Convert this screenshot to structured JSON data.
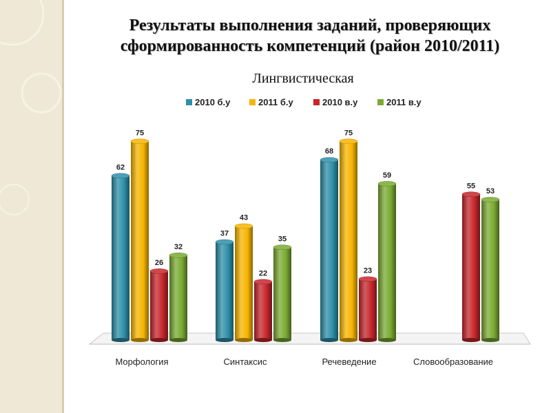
{
  "slide": {
    "title_line1": "Результаты выполнения заданий, проверяющих",
    "title_line2": "сформированность компетенций (район 2010/2011)"
  },
  "colors": {
    "blue": "#2e8fa8",
    "orange": "#f7b500",
    "red": "#c6262c",
    "green": "#7aaa32"
  },
  "chart_data": {
    "type": "bar",
    "title": "Лингвистическая",
    "categories": [
      "Морфология",
      "Синтаксис",
      "Речеведение",
      "Словообразование"
    ],
    "series": [
      {
        "name": "2010 б.у",
        "color": "#2e8fa8",
        "values": [
          62,
          37,
          68,
          null
        ]
      },
      {
        "name": "2011 б.у",
        "color": "#f7b500",
        "values": [
          75,
          43,
          75,
          null
        ]
      },
      {
        "name": "2010 в.у",
        "color": "#c6262c",
        "values": [
          26,
          22,
          23,
          55
        ]
      },
      {
        "name": "2011 в.у",
        "color": "#7aaa32",
        "values": [
          32,
          35,
          59,
          53
        ]
      }
    ],
    "ylim": [
      0,
      100
    ],
    "grid": false,
    "legend_position": "top",
    "data_labels": true,
    "three_d": true
  }
}
